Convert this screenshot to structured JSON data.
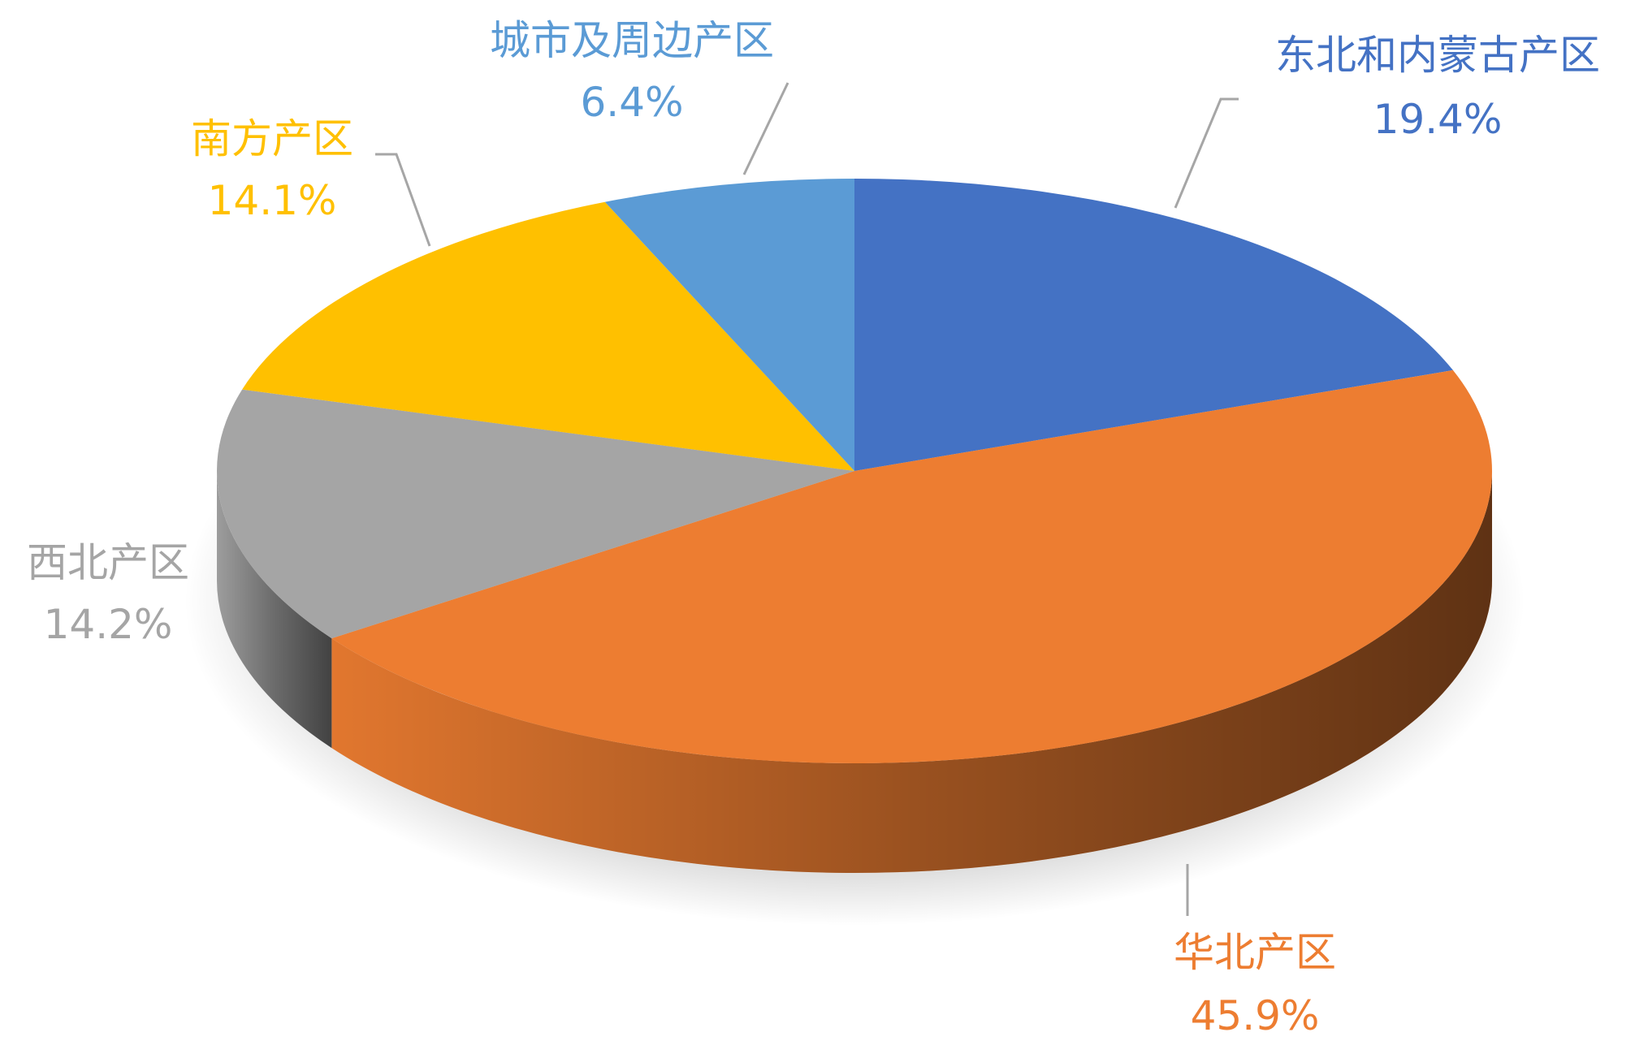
{
  "chart_data": {
    "type": "pie",
    "style": "3d",
    "start": "top",
    "direction": "clockwise",
    "slices": [
      {
        "label": "东北和内蒙古产区",
        "value": 19.4,
        "value_label": "19.4%",
        "color": "#4472C4"
      },
      {
        "label": "华北产区",
        "value": 45.9,
        "value_label": "45.9%",
        "color": "#ED7D31"
      },
      {
        "label": "西北产区",
        "value": 14.2,
        "value_label": "14.2%",
        "color": "#A5A5A5"
      },
      {
        "label": "南方产区",
        "value": 14.1,
        "value_label": "14.1%",
        "color": "#FFC000"
      },
      {
        "label": "城市及周边产区",
        "value": 6.4,
        "value_label": "6.4%",
        "color": "#5B9BD5"
      }
    ],
    "leader_line_color": "#A6A6A6"
  }
}
